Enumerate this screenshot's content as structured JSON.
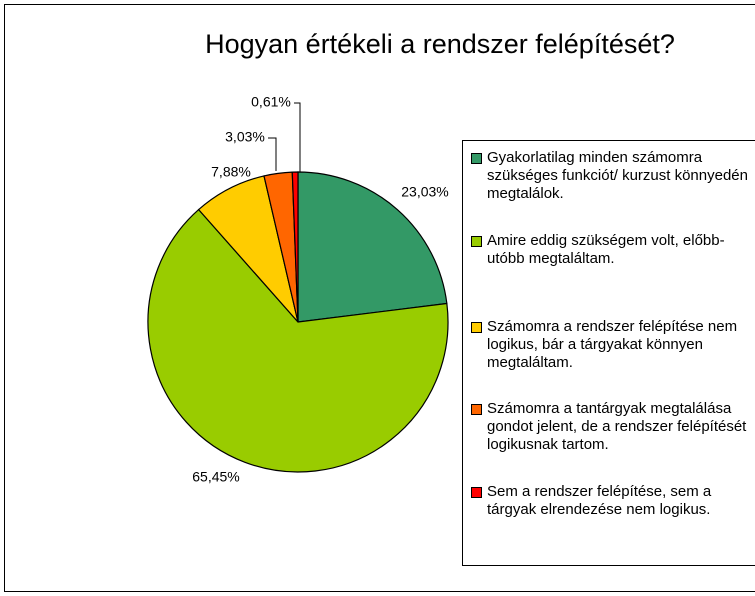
{
  "chart_data": {
    "type": "pie",
    "title": "Hogyan értékeli a rendszer felépítését?",
    "categories": [
      "Gyakorlatilag minden számomra szükséges funkciót/ kurzust könnyedén megtalálok.",
      "Amire eddig szükségem volt, előbb-utóbb megtaláltam.",
      "Számomra a rendszer felépítése nem logikus, bár a tárgyakat könnyen megtaláltam.",
      "Számomra a tantárgyak megtalálása gondot jelent, de a rendszer felépítését logikusnak tartom.",
      "Sem a rendszer felépítése, sem a tárgyak elrendezése nem logikus."
    ],
    "values": [
      23.03,
      65.45,
      7.88,
      3.03,
      0.61
    ],
    "value_labels": [
      "23,03%",
      "65,45%",
      "7,88%",
      "3,03%",
      "0,61%"
    ],
    "colors": [
      "#339966",
      "#99cc00",
      "#ffcc00",
      "#ff6600",
      "#ff0000"
    ],
    "legend": "right"
  }
}
